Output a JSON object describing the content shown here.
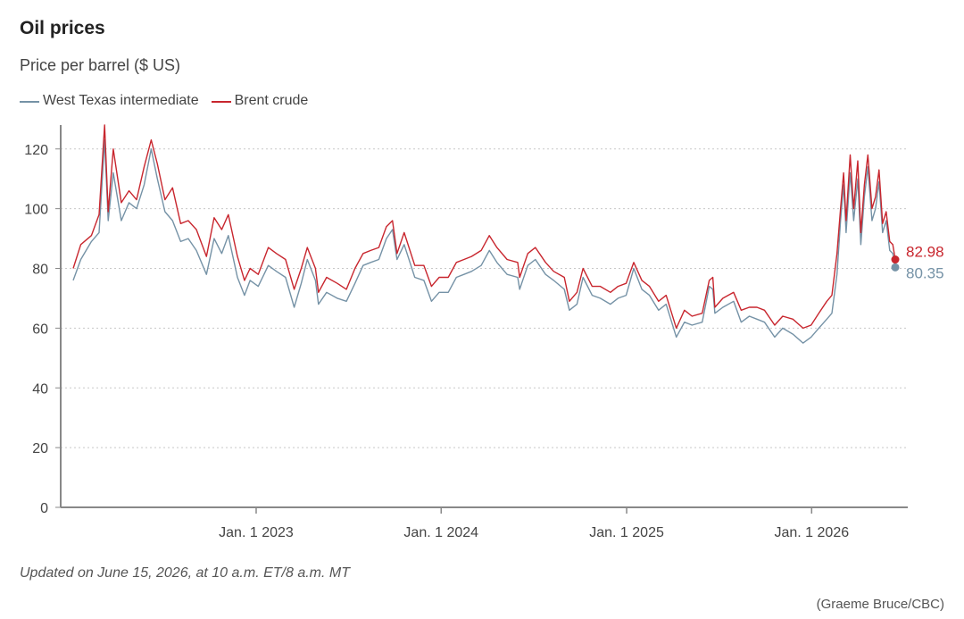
{
  "chart_data": {
    "type": "line",
    "title": "Oil prices",
    "subtitle": "Price per barrel ($ US)",
    "xlabel": "",
    "ylabel": "",
    "ylim": [
      0,
      128
    ],
    "xlim": [
      "2022-01-05",
      "2026-06-15"
    ],
    "yticks": [
      0,
      20,
      40,
      60,
      80,
      100,
      120
    ],
    "xticks": [
      {
        "date": "2023-01-01",
        "label": "Jan. 1 2023"
      },
      {
        "date": "2024-01-01",
        "label": "Jan. 1 2024"
      },
      {
        "date": "2025-01-01",
        "label": "Jan. 1 2025"
      },
      {
        "date": "2026-01-01",
        "label": "Jan. 1 2026"
      }
    ],
    "grid": "horizontal dotted",
    "legend_position": "top-left",
    "series": [
      {
        "name": "West Texas intermediate",
        "color": "#7592a6",
        "end_label": "80.35",
        "points": [
          [
            "2022-01-05",
            76
          ],
          [
            "2022-01-20",
            83
          ],
          [
            "2022-02-10",
            89
          ],
          [
            "2022-02-25",
            92
          ],
          [
            "2022-03-08",
            123
          ],
          [
            "2022-03-15",
            96
          ],
          [
            "2022-03-25",
            112
          ],
          [
            "2022-04-10",
            96
          ],
          [
            "2022-04-25",
            102
          ],
          [
            "2022-05-10",
            100
          ],
          [
            "2022-05-25",
            108
          ],
          [
            "2022-06-08",
            120
          ],
          [
            "2022-06-20",
            110
          ],
          [
            "2022-07-05",
            99
          ],
          [
            "2022-07-20",
            96
          ],
          [
            "2022-08-05",
            89
          ],
          [
            "2022-08-20",
            90
          ],
          [
            "2022-09-05",
            86
          ],
          [
            "2022-09-25",
            78
          ],
          [
            "2022-10-10",
            90
          ],
          [
            "2022-10-25",
            85
          ],
          [
            "2022-11-07",
            91
          ],
          [
            "2022-11-25",
            77
          ],
          [
            "2022-12-09",
            71
          ],
          [
            "2022-12-20",
            76
          ],
          [
            "2023-01-05",
            74
          ],
          [
            "2023-01-25",
            81
          ],
          [
            "2023-02-10",
            79
          ],
          [
            "2023-02-28",
            77
          ],
          [
            "2023-03-17",
            67
          ],
          [
            "2023-03-31",
            75
          ],
          [
            "2023-04-12",
            83
          ],
          [
            "2023-04-28",
            76
          ],
          [
            "2023-05-04",
            68
          ],
          [
            "2023-05-20",
            72
          ],
          [
            "2023-06-10",
            70
          ],
          [
            "2023-06-28",
            69
          ],
          [
            "2023-07-15",
            75
          ],
          [
            "2023-07-31",
            81
          ],
          [
            "2023-08-15",
            82
          ],
          [
            "2023-08-31",
            83
          ],
          [
            "2023-09-15",
            90
          ],
          [
            "2023-09-27",
            93
          ],
          [
            "2023-10-06",
            83
          ],
          [
            "2023-10-20",
            88
          ],
          [
            "2023-11-10",
            77
          ],
          [
            "2023-11-28",
            76
          ],
          [
            "2023-12-13",
            69
          ],
          [
            "2023-12-28",
            72
          ],
          [
            "2024-01-15",
            72
          ],
          [
            "2024-01-31",
            77
          ],
          [
            "2024-02-15",
            78
          ],
          [
            "2024-03-01",
            79
          ],
          [
            "2024-03-20",
            81
          ],
          [
            "2024-04-05",
            86
          ],
          [
            "2024-04-20",
            82
          ],
          [
            "2024-05-10",
            78
          ],
          [
            "2024-05-31",
            77
          ],
          [
            "2024-06-04",
            73
          ],
          [
            "2024-06-20",
            81
          ],
          [
            "2024-07-05",
            83
          ],
          [
            "2024-07-25",
            78
          ],
          [
            "2024-08-10",
            76
          ],
          [
            "2024-08-31",
            73
          ],
          [
            "2024-09-10",
            66
          ],
          [
            "2024-09-25",
            68
          ],
          [
            "2024-10-07",
            77
          ],
          [
            "2024-10-25",
            71
          ],
          [
            "2024-11-10",
            70
          ],
          [
            "2024-11-30",
            68
          ],
          [
            "2024-12-15",
            70
          ],
          [
            "2024-12-31",
            71
          ],
          [
            "2025-01-15",
            80
          ],
          [
            "2025-01-31",
            73
          ],
          [
            "2025-02-15",
            71
          ],
          [
            "2025-03-05",
            66
          ],
          [
            "2025-03-20",
            68
          ],
          [
            "2025-04-09",
            57
          ],
          [
            "2025-04-25",
            62
          ],
          [
            "2025-05-10",
            61
          ],
          [
            "2025-05-30",
            62
          ],
          [
            "2025-06-13",
            74
          ],
          [
            "2025-06-20",
            73
          ],
          [
            "2025-06-24",
            65
          ],
          [
            "2025-07-10",
            67
          ],
          [
            "2025-07-31",
            69
          ],
          [
            "2025-08-15",
            62
          ],
          [
            "2025-08-31",
            64
          ],
          [
            "2025-09-15",
            63
          ],
          [
            "2025-09-30",
            62
          ],
          [
            "2025-10-20",
            57
          ],
          [
            "2025-11-05",
            60
          ],
          [
            "2025-11-25",
            58
          ],
          [
            "2025-12-15",
            55
          ],
          [
            "2025-12-31",
            57
          ],
          [
            "2026-01-15",
            60
          ],
          [
            "2026-01-31",
            63
          ],
          [
            "2026-02-10",
            65
          ],
          [
            "2026-02-20",
            78
          ],
          [
            "2026-02-27",
            96
          ],
          [
            "2026-03-05",
            108
          ],
          [
            "2026-03-10",
            92
          ],
          [
            "2026-03-18",
            112
          ],
          [
            "2026-03-25",
            96
          ],
          [
            "2026-04-02",
            110
          ],
          [
            "2026-04-08",
            88
          ],
          [
            "2026-04-15",
            104
          ],
          [
            "2026-04-22",
            114
          ],
          [
            "2026-04-30",
            96
          ],
          [
            "2026-05-07",
            100
          ],
          [
            "2026-05-14",
            109
          ],
          [
            "2026-05-21",
            92
          ],
          [
            "2026-05-28",
            96
          ],
          [
            "2026-06-04",
            86
          ],
          [
            "2026-06-10",
            85
          ],
          [
            "2026-06-15",
            80.35
          ]
        ]
      },
      {
        "name": "Brent crude",
        "color": "#c8262e",
        "end_label": "82.98",
        "points": [
          [
            "2022-01-05",
            80
          ],
          [
            "2022-01-20",
            88
          ],
          [
            "2022-02-10",
            91
          ],
          [
            "2022-02-25",
            98
          ],
          [
            "2022-03-08",
            128
          ],
          [
            "2022-03-15",
            99
          ],
          [
            "2022-03-25",
            120
          ],
          [
            "2022-04-10",
            102
          ],
          [
            "2022-04-25",
            106
          ],
          [
            "2022-05-10",
            103
          ],
          [
            "2022-05-25",
            114
          ],
          [
            "2022-06-08",
            123
          ],
          [
            "2022-06-20",
            115
          ],
          [
            "2022-07-05",
            103
          ],
          [
            "2022-07-20",
            107
          ],
          [
            "2022-08-05",
            95
          ],
          [
            "2022-08-20",
            96
          ],
          [
            "2022-09-05",
            93
          ],
          [
            "2022-09-25",
            84
          ],
          [
            "2022-10-10",
            97
          ],
          [
            "2022-10-25",
            93
          ],
          [
            "2022-11-07",
            98
          ],
          [
            "2022-11-25",
            84
          ],
          [
            "2022-12-09",
            76
          ],
          [
            "2022-12-20",
            80
          ],
          [
            "2023-01-05",
            78
          ],
          [
            "2023-01-25",
            87
          ],
          [
            "2023-02-10",
            85
          ],
          [
            "2023-02-28",
            83
          ],
          [
            "2023-03-17",
            73
          ],
          [
            "2023-03-31",
            80
          ],
          [
            "2023-04-12",
            87
          ],
          [
            "2023-04-28",
            80
          ],
          [
            "2023-05-04",
            72
          ],
          [
            "2023-05-20",
            77
          ],
          [
            "2023-06-10",
            75
          ],
          [
            "2023-06-28",
            73
          ],
          [
            "2023-07-15",
            80
          ],
          [
            "2023-07-31",
            85
          ],
          [
            "2023-08-15",
            86
          ],
          [
            "2023-08-31",
            87
          ],
          [
            "2023-09-15",
            94
          ],
          [
            "2023-09-27",
            96
          ],
          [
            "2023-10-06",
            85
          ],
          [
            "2023-10-20",
            92
          ],
          [
            "2023-11-10",
            81
          ],
          [
            "2023-11-28",
            81
          ],
          [
            "2023-12-13",
            74
          ],
          [
            "2023-12-28",
            77
          ],
          [
            "2024-01-15",
            77
          ],
          [
            "2024-01-31",
            82
          ],
          [
            "2024-02-15",
            83
          ],
          [
            "2024-03-01",
            84
          ],
          [
            "2024-03-20",
            86
          ],
          [
            "2024-04-05",
            91
          ],
          [
            "2024-04-20",
            87
          ],
          [
            "2024-05-10",
            83
          ],
          [
            "2024-05-31",
            82
          ],
          [
            "2024-06-04",
            77
          ],
          [
            "2024-06-20",
            85
          ],
          [
            "2024-07-05",
            87
          ],
          [
            "2024-07-25",
            82
          ],
          [
            "2024-08-10",
            79
          ],
          [
            "2024-08-31",
            77
          ],
          [
            "2024-09-10",
            69
          ],
          [
            "2024-09-25",
            72
          ],
          [
            "2024-10-07",
            80
          ],
          [
            "2024-10-25",
            74
          ],
          [
            "2024-11-10",
            74
          ],
          [
            "2024-11-30",
            72
          ],
          [
            "2024-12-15",
            74
          ],
          [
            "2024-12-31",
            75
          ],
          [
            "2025-01-15",
            82
          ],
          [
            "2025-01-31",
            76
          ],
          [
            "2025-02-15",
            74
          ],
          [
            "2025-03-05",
            69
          ],
          [
            "2025-03-20",
            71
          ],
          [
            "2025-04-09",
            60
          ],
          [
            "2025-04-25",
            66
          ],
          [
            "2025-05-10",
            64
          ],
          [
            "2025-05-30",
            65
          ],
          [
            "2025-06-13",
            76
          ],
          [
            "2025-06-20",
            77
          ],
          [
            "2025-06-24",
            67
          ],
          [
            "2025-07-10",
            70
          ],
          [
            "2025-07-31",
            72
          ],
          [
            "2025-08-15",
            66
          ],
          [
            "2025-08-31",
            67
          ],
          [
            "2025-09-15",
            67
          ],
          [
            "2025-09-30",
            66
          ],
          [
            "2025-10-20",
            61
          ],
          [
            "2025-11-05",
            64
          ],
          [
            "2025-11-25",
            63
          ],
          [
            "2025-12-15",
            60
          ],
          [
            "2025-12-31",
            61
          ],
          [
            "2026-01-15",
            65
          ],
          [
            "2026-01-31",
            69
          ],
          [
            "2026-02-10",
            71
          ],
          [
            "2026-02-20",
            85
          ],
          [
            "2026-02-27",
            100
          ],
          [
            "2026-03-05",
            112
          ],
          [
            "2026-03-10",
            96
          ],
          [
            "2026-03-18",
            118
          ],
          [
            "2026-03-25",
            100
          ],
          [
            "2026-04-02",
            116
          ],
          [
            "2026-04-08",
            92
          ],
          [
            "2026-04-15",
            108
          ],
          [
            "2026-04-22",
            118
          ],
          [
            "2026-04-30",
            100
          ],
          [
            "2026-05-07",
            104
          ],
          [
            "2026-05-14",
            113
          ],
          [
            "2026-05-21",
            95
          ],
          [
            "2026-05-28",
            99
          ],
          [
            "2026-06-04",
            89
          ],
          [
            "2026-06-10",
            88
          ],
          [
            "2026-06-15",
            82.98
          ]
        ]
      }
    ]
  },
  "footer": {
    "note": "Updated on June 15, 2026, at 10 a.m. ET/8 a.m. MT",
    "credit": "(Graeme Bruce/CBC)"
  }
}
